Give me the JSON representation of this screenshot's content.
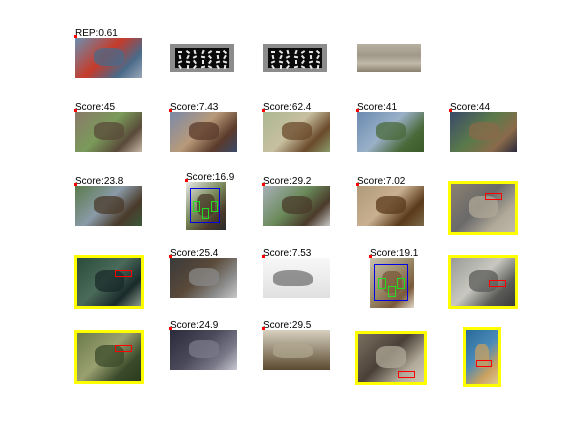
{
  "rows": [
    {
      "cells": [
        {
          "label": "REP:0.61",
          "kind": "photo-detection",
          "palette": [
            "#6b8fb0",
            "#4a6a8a",
            "#c63b2a",
            "#9aa7b8"
          ]
        },
        {
          "label": "",
          "kind": "hog-template"
        },
        {
          "label": "",
          "kind": "hog-template"
        },
        {
          "label": "",
          "kind": "texture"
        },
        {
          "label": "",
          "kind": "empty"
        }
      ]
    },
    {
      "cells": [
        {
          "label": "Score:45",
          "kind": "photo-detection",
          "palette": [
            "#8a7a6a",
            "#5a4a3a",
            "#7a9a5a",
            "#c8b8a8"
          ]
        },
        {
          "label": "Score:7.43",
          "kind": "photo-detection",
          "palette": [
            "#7a8aa8",
            "#5a3a2a",
            "#b89a7a",
            "#3a4a6a"
          ]
        },
        {
          "label": "Score:62.4",
          "kind": "photo-detection",
          "palette": [
            "#aab890",
            "#6a4a2a",
            "#c8c0a0",
            "#8a9a6a"
          ]
        },
        {
          "label": "Score:41",
          "kind": "photo-detection",
          "palette": [
            "#6a8ab0",
            "#4a6a3a",
            "#9ab0c8",
            "#3a5a2a"
          ]
        },
        {
          "label": "Score:44",
          "kind": "photo-detection",
          "palette": [
            "#3a4a6a",
            "#8a6a4a",
            "#5a7a4a",
            "#2a2a3a"
          ]
        }
      ]
    },
    {
      "cells": [
        {
          "label": "Score:23.8",
          "kind": "photo-detection",
          "palette": [
            "#5a7a4a",
            "#4a3a2a",
            "#8a9aa8",
            "#3a5a3a"
          ]
        },
        {
          "label": "Score:16.9",
          "kind": "photo-detection-small",
          "palette": [
            "#e8e8e8",
            "#4a3a2a",
            "#7a8a5a",
            "#2a2a2a"
          ]
        },
        {
          "label": "Score:29.2",
          "kind": "photo-detection",
          "palette": [
            "#a8b0b8",
            "#4a3a2a",
            "#6a8a5a",
            "#c8c8c8"
          ]
        },
        {
          "label": "Score:7.02",
          "kind": "photo-detection",
          "palette": [
            "#b09a7a",
            "#5a3a1a",
            "#c8b090",
            "#7a6a4a"
          ]
        },
        {
          "label": "",
          "kind": "selected-photo",
          "palette": [
            "#8a8070",
            "#b0a898",
            "#6a6a6a",
            "#c0b8a8"
          ]
        }
      ]
    },
    {
      "cells": [
        {
          "label": "",
          "kind": "selected-photo",
          "palette": [
            "#2a4a3a",
            "#1a2a2a",
            "#4a6a5a",
            "#8a9a8a"
          ]
        },
        {
          "label": "Score:25.4",
          "kind": "photo-detection",
          "palette": [
            "#3a3a3a",
            "#8a8a8a",
            "#5a4a3a",
            "#c8c8c8"
          ]
        },
        {
          "label": "Score:7.53",
          "kind": "drawing-detection",
          "palette": [
            "#f8f8f8",
            "#a0a0a0",
            "#6a6a6a",
            "#e0e0e0"
          ]
        },
        {
          "label": "Score:19.1",
          "kind": "photo-detection-stack",
          "palette": [
            "#c8c0b0",
            "#7a5a3a",
            "#9a8a6a",
            "#e0d8c8"
          ]
        },
        {
          "label": "",
          "kind": "selected-photo",
          "palette": [
            "#9a9a98",
            "#5a5a58",
            "#c8c8c0",
            "#3a3a38"
          ]
        }
      ]
    },
    {
      "cells": [
        {
          "label": "",
          "kind": "selected-photo",
          "palette": [
            "#6a7a4a",
            "#3a4a2a",
            "#9aa070",
            "#2a3a1a"
          ]
        },
        {
          "label": "Score:24.9",
          "kind": "photo-detection",
          "palette": [
            "#2a2a3a",
            "#7a7a8a",
            "#4a4a5a",
            "#c8c8d0"
          ]
        },
        {
          "label": "Score:29.5",
          "kind": "drawing-detection",
          "palette": [
            "#d8d0c0",
            "#8a7a60",
            "#b0a890",
            "#5a4a30"
          ]
        },
        {
          "label": "",
          "kind": "selected-photo",
          "palette": [
            "#7a7060",
            "#b0a898",
            "#4a4038",
            "#d0c8b8"
          ]
        },
        {
          "label": "",
          "kind": "selected-photo",
          "palette": [
            "#2a6a9a",
            "#c8a060",
            "#4a8ab8",
            "#e0c890"
          ]
        }
      ]
    }
  ]
}
